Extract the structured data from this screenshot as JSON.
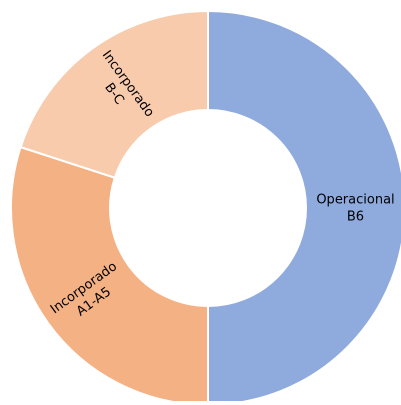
{
  "chart_data": {
    "type": "donut",
    "categories": [
      [
        "Operacional",
        "B6"
      ],
      [
        "Incorporado",
        "A1-A5"
      ],
      [
        "Incorporado",
        "B-C"
      ]
    ],
    "values": [
      50,
      30,
      20
    ],
    "colors": [
      "#8faadc",
      "#f4b183",
      "#f8cbad"
    ]
  }
}
